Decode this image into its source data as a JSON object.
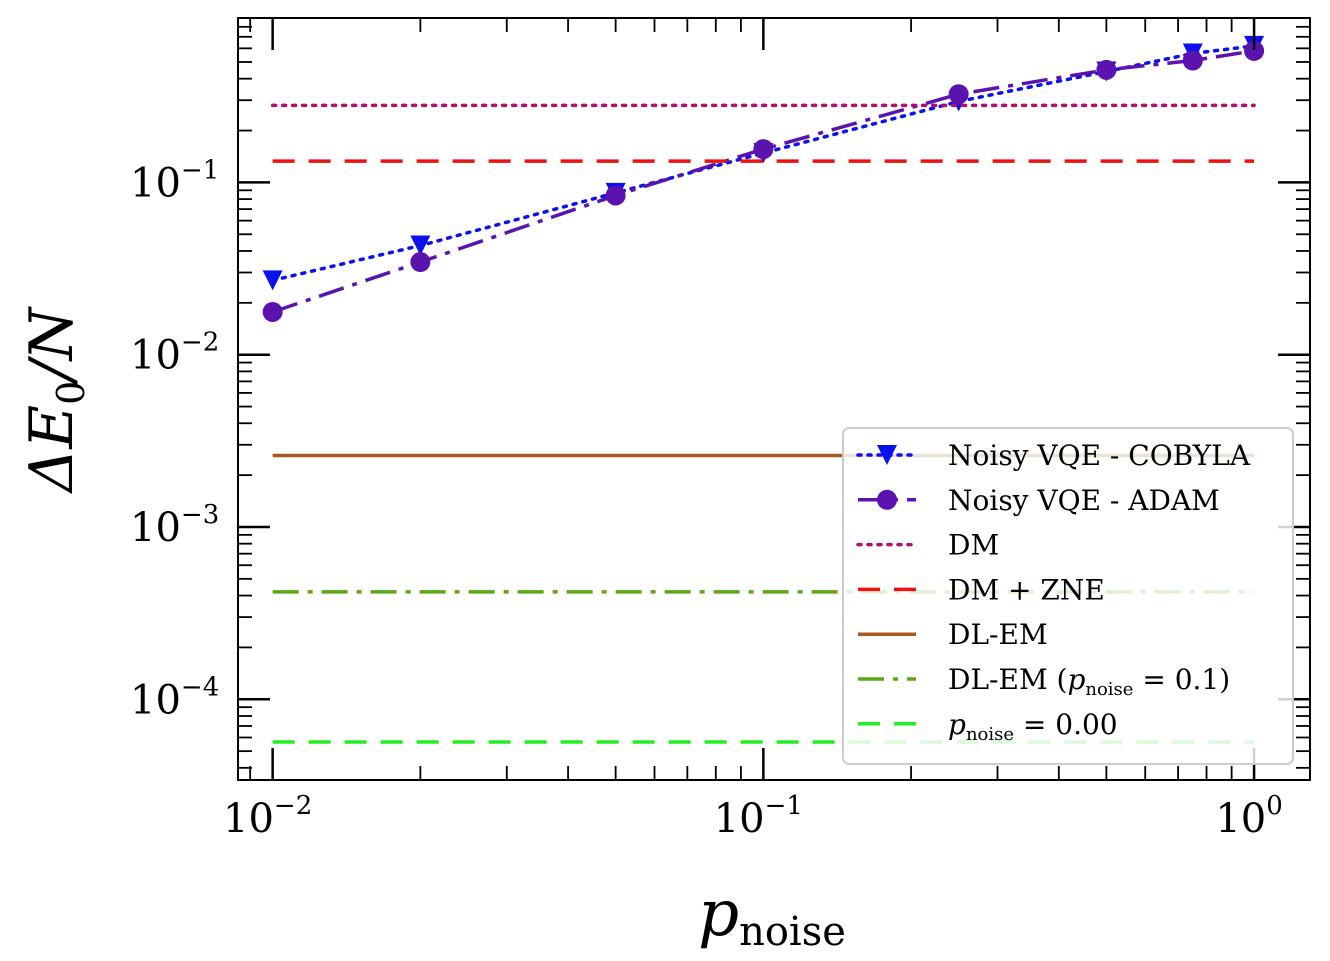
{
  "chart_data": {
    "type": "line",
    "xscale": "log",
    "yscale": "log",
    "xlim": [
      0.0085,
      1.3
    ],
    "ylim": [
      3.4e-05,
      0.9
    ],
    "x_ticks": [
      {
        "value": 0.01,
        "base": "10",
        "exp": "−2"
      },
      {
        "value": 0.1,
        "base": "10",
        "exp": "−1"
      },
      {
        "value": 1,
        "base": "10",
        "exp": "0"
      }
    ],
    "y_ticks": [
      {
        "value": 0.1,
        "base": "10",
        "exp": "−1"
      },
      {
        "value": 0.01,
        "base": "10",
        "exp": "−2"
      },
      {
        "value": 0.001,
        "base": "10",
        "exp": "−3"
      },
      {
        "value": 0.0001,
        "base": "10",
        "exp": "−4"
      }
    ],
    "xlabel": {
      "main": "p",
      "sub": "noise"
    },
    "ylabel": {
      "main": "ΔE",
      "sub": "0",
      "tail": "/N"
    },
    "series": [
      {
        "name": "Noisy VQE - COBYLA",
        "color": "#0a10ee",
        "dash": "dotted",
        "marker": "triangle-down",
        "x": [
          0.01,
          0.02,
          0.05,
          0.1,
          0.25,
          0.5,
          0.75,
          1.0
        ],
        "y": [
          0.027,
          0.043,
          0.087,
          0.148,
          0.295,
          0.44,
          0.56,
          0.62
        ]
      },
      {
        "name": "Noisy VQE - ADAM",
        "color": "#5b13b0",
        "dash": "dashdot",
        "marker": "circle",
        "x": [
          0.01,
          0.02,
          0.05,
          0.1,
          0.25,
          0.5,
          0.75,
          1.0
        ],
        "y": [
          0.0177,
          0.0345,
          0.084,
          0.156,
          0.325,
          0.45,
          0.51,
          0.58
        ]
      },
      {
        "name": "DM",
        "color": "#b0106a",
        "dash": "dotted",
        "marker": "none",
        "x": [
          0.01,
          1.0
        ],
        "y": [
          0.28,
          0.28
        ]
      },
      {
        "name": "DM + ZNE",
        "color": "#ee1111",
        "dash": "dashed",
        "marker": "none",
        "x": [
          0.01,
          1.0
        ],
        "y": [
          0.133,
          0.133
        ]
      },
      {
        "name": "DL-EM",
        "color": "#a85a1a",
        "dash": "solid",
        "marker": "none",
        "x": [
          0.01,
          1.0
        ],
        "y": [
          0.0026,
          0.0026
        ]
      },
      {
        "name": "DL-EM (p_noise = 0.1)",
        "color": "#5aa813",
        "dash": "dashdot",
        "marker": "none",
        "x": [
          0.01,
          1.0
        ],
        "y": [
          0.00042,
          0.00042
        ]
      },
      {
        "name": "p_noise = 0.00",
        "color": "#22ee22",
        "dash": "dashed",
        "marker": "none",
        "x": [
          0.01,
          1.0
        ],
        "y": [
          5.65e-05,
          5.65e-05
        ]
      }
    ],
    "legend": {
      "location": "lower-right",
      "entries": [
        {
          "text": "Noisy VQE - COBYLA"
        },
        {
          "text": "Noisy VQE - ADAM"
        },
        {
          "text": "DM"
        },
        {
          "text": "DM + ZNE"
        },
        {
          "text": "DL-EM"
        },
        {
          "pre": "DL-EM (",
          "p": "p",
          "sub": "noise",
          "post": " = 0.1)"
        },
        {
          "pre": "",
          "p": "p",
          "sub": "noise",
          "post": " = 0.00"
        }
      ]
    }
  }
}
